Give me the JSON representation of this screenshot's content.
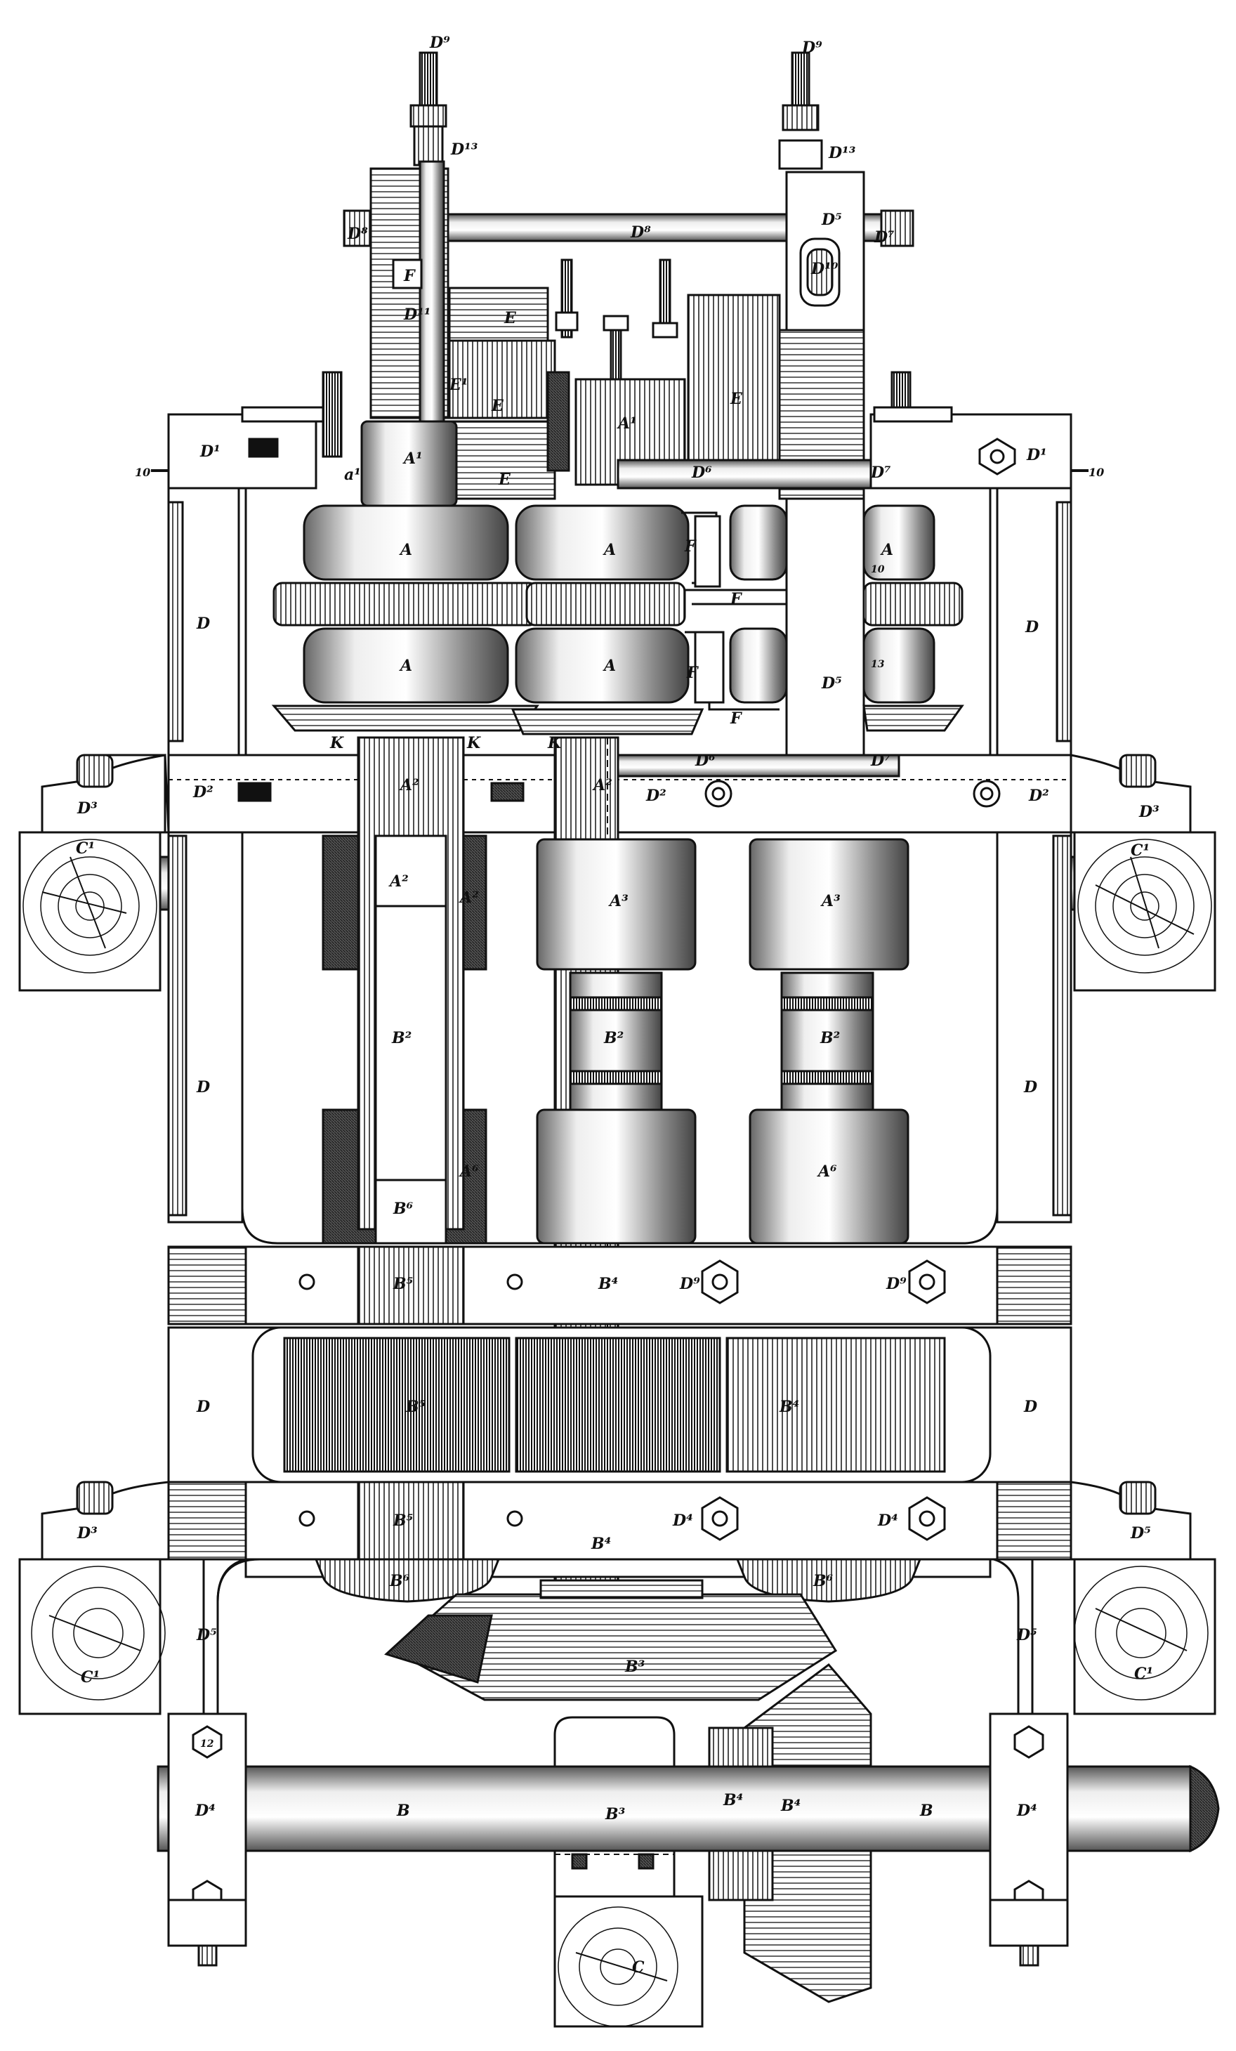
{
  "labels": {
    "D9_left": "D⁹",
    "D9_right": "D⁹",
    "D13_left": "D¹³",
    "D13_right": "D¹³",
    "D8_left": "D⁸",
    "D8_rod": "D⁸",
    "D7_top": "D⁷",
    "D5_upper": "D⁵",
    "D5_lower": "D⁵",
    "D10": "D¹⁰",
    "F1": "F",
    "D11": "D¹¹",
    "E_left": "E",
    "E1": "E¹",
    "E_mid": "E",
    "E_lowleft": "E",
    "E_right": "E",
    "A1_top": "A¹",
    "A1_mid": "A¹",
    "A_e1": "a¹",
    "D1_left": "D¹",
    "D1_right": "D¹",
    "n10_left": "10",
    "n10_right": "10",
    "D6_upper": "D⁶",
    "D6_lower": "D⁶",
    "D7_mid": "D⁷",
    "D7_low": "D⁷",
    "A_1": "A",
    "A_2": "A",
    "A_3": "A",
    "A_4": "A",
    "A_5": "A",
    "F_1": "F",
    "F_2": "F",
    "F_3": "F",
    "F_4": "F",
    "D_up_left": "D",
    "D_up_right": "D",
    "K1": "K",
    "K2": "K",
    "K3": "K",
    "A2_left": "A²",
    "A2_right": "A²",
    "D2_left": "D²",
    "D2_mid": "D²",
    "D2_right": "D²",
    "D3_ul": "D³",
    "D3_ur": "D³",
    "D3_ll": "D³",
    "D3_lr": "D⁵",
    "C1_ul": "C¹",
    "C1_ur": "C¹",
    "C1_ll": "C¹",
    "C1_lr": "C¹",
    "A2_a": "A²",
    "A2_b": "A²",
    "A3_mid": "A³",
    "A3_right": "A³",
    "B2_left": "B²",
    "B2_mid": "B²",
    "B2_right": "B²",
    "A6_left": "A⁶",
    "A6_right": "A⁶",
    "B6": "B⁶",
    "D_mid_left": "D",
    "D_mid_right": "D",
    "B5_upper": "B⁵",
    "B4_upper": "B⁴",
    "D9_a": "D⁹",
    "D9_b": "D⁹",
    "B5_gear": "B⁵",
    "B4_gear": "B⁴",
    "D_low_left": "D",
    "D_low_right": "D",
    "B5_lower": "B⁵",
    "B4_lower": "B⁴",
    "D4_a": "D⁴",
    "D4_b": "D⁴",
    "B6_left": "B⁶",
    "B6_right": "B⁶",
    "D5_left": "D⁵",
    "D5_right": "D⁵",
    "B3_bevel": "B³",
    "B3_hanger": "B³",
    "D4_left": "D⁴",
    "D4_right": "D⁴",
    "B_left": "B",
    "B_right": "B",
    "B4_bevel": "B⁴",
    "B4_bevel2": "B⁴",
    "C_bottom": "C",
    "n12": "12",
    "n13": "13",
    "n10": "10"
  }
}
